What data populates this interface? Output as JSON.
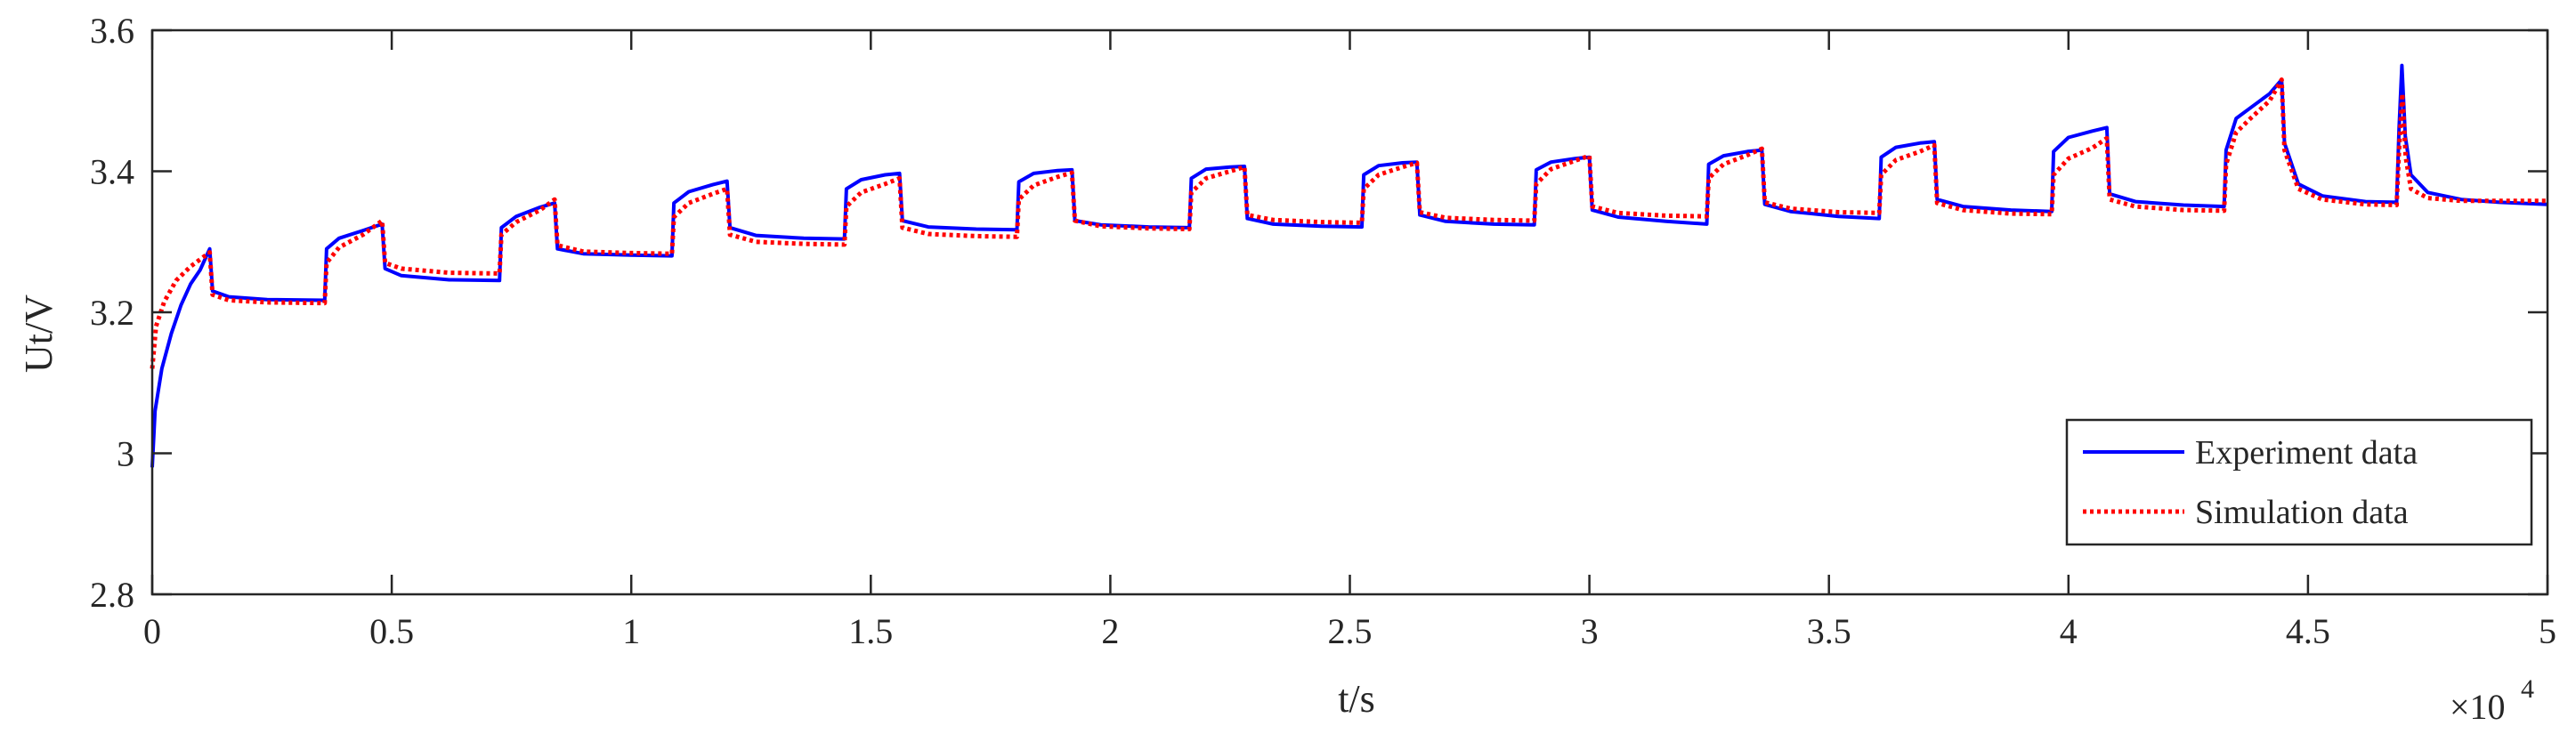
{
  "chart_data": {
    "type": "line",
    "xlabel": "t/s",
    "ylabel": "Ut/V",
    "x_multiplier_label": "×10",
    "x_multiplier_exponent": "4",
    "xlim": [
      0,
      50000
    ],
    "ylim": [
      2.8,
      3.6
    ],
    "x_ticks": [
      0,
      5000,
      10000,
      15000,
      20000,
      25000,
      30000,
      35000,
      40000,
      45000,
      50000
    ],
    "x_tick_labels": [
      "0",
      "0.5",
      "1",
      "1.5",
      "2",
      "2.5",
      "3",
      "3.5",
      "4",
      "4.5",
      "5"
    ],
    "y_ticks": [
      2.8,
      3.0,
      3.2,
      3.4,
      3.6
    ],
    "y_tick_labels": [
      "2.8",
      "3",
      "3.2",
      "3.4",
      "3.6"
    ],
    "grid": false,
    "legend_position": "lower-right",
    "series": [
      {
        "name": "Experiment data",
        "color": "#0000ff",
        "style": "solid",
        "points": [
          [
            0,
            2.98
          ],
          [
            60,
            3.06
          ],
          [
            200,
            3.12
          ],
          [
            400,
            3.17
          ],
          [
            600,
            3.21
          ],
          [
            800,
            3.24
          ],
          [
            1000,
            3.26
          ],
          [
            1200,
            3.29
          ],
          [
            1260,
            3.23
          ],
          [
            1600,
            3.222
          ],
          [
            2400,
            3.218
          ],
          [
            3600,
            3.217
          ],
          [
            3640,
            3.29
          ],
          [
            3900,
            3.305
          ],
          [
            4400,
            3.316
          ],
          [
            4800,
            3.325
          ],
          [
            4860,
            3.262
          ],
          [
            5200,
            3.252
          ],
          [
            6200,
            3.246
          ],
          [
            7250,
            3.245
          ],
          [
            7290,
            3.32
          ],
          [
            7600,
            3.336
          ],
          [
            8100,
            3.349
          ],
          [
            8400,
            3.355
          ],
          [
            8460,
            3.29
          ],
          [
            9000,
            3.283
          ],
          [
            10000,
            3.281
          ],
          [
            10850,
            3.28
          ],
          [
            10890,
            3.355
          ],
          [
            11200,
            3.371
          ],
          [
            11700,
            3.381
          ],
          [
            12000,
            3.386
          ],
          [
            12060,
            3.32
          ],
          [
            12600,
            3.309
          ],
          [
            13600,
            3.305
          ],
          [
            14450,
            3.304
          ],
          [
            14490,
            3.375
          ],
          [
            14800,
            3.388
          ],
          [
            15300,
            3.395
          ],
          [
            15600,
            3.397
          ],
          [
            15660,
            3.33
          ],
          [
            16200,
            3.321
          ],
          [
            17200,
            3.318
          ],
          [
            18050,
            3.317
          ],
          [
            18090,
            3.385
          ],
          [
            18400,
            3.397
          ],
          [
            18900,
            3.401
          ],
          [
            19200,
            3.402
          ],
          [
            19260,
            3.33
          ],
          [
            19800,
            3.324
          ],
          [
            20800,
            3.321
          ],
          [
            21650,
            3.32
          ],
          [
            21690,
            3.39
          ],
          [
            22000,
            3.403
          ],
          [
            22500,
            3.406
          ],
          [
            22800,
            3.407
          ],
          [
            22860,
            3.333
          ],
          [
            23400,
            3.325
          ],
          [
            24400,
            3.322
          ],
          [
            25250,
            3.321
          ],
          [
            25290,
            3.395
          ],
          [
            25600,
            3.408
          ],
          [
            26100,
            3.412
          ],
          [
            26400,
            3.413
          ],
          [
            26460,
            3.338
          ],
          [
            27000,
            3.329
          ],
          [
            28000,
            3.325
          ],
          [
            28850,
            3.324
          ],
          [
            28890,
            3.402
          ],
          [
            29200,
            3.413
          ],
          [
            29700,
            3.418
          ],
          [
            30000,
            3.42
          ],
          [
            30060,
            3.345
          ],
          [
            30600,
            3.335
          ],
          [
            31600,
            3.329
          ],
          [
            32450,
            3.325
          ],
          [
            32490,
            3.41
          ],
          [
            32800,
            3.422
          ],
          [
            33300,
            3.428
          ],
          [
            33600,
            3.43
          ],
          [
            33660,
            3.353
          ],
          [
            34200,
            3.343
          ],
          [
            35200,
            3.336
          ],
          [
            36050,
            3.333
          ],
          [
            36090,
            3.42
          ],
          [
            36400,
            3.434
          ],
          [
            36900,
            3.44
          ],
          [
            37200,
            3.442
          ],
          [
            37260,
            3.36
          ],
          [
            37800,
            3.35
          ],
          [
            38800,
            3.345
          ],
          [
            39650,
            3.343
          ],
          [
            39690,
            3.428
          ],
          [
            40000,
            3.448
          ],
          [
            40500,
            3.457
          ],
          [
            40800,
            3.462
          ],
          [
            40860,
            3.368
          ],
          [
            41400,
            3.357
          ],
          [
            42400,
            3.352
          ],
          [
            43250,
            3.35
          ],
          [
            43290,
            3.43
          ],
          [
            43500,
            3.475
          ],
          [
            43800,
            3.49
          ],
          [
            44200,
            3.51
          ],
          [
            44450,
            3.53
          ],
          [
            44510,
            3.44
          ],
          [
            44800,
            3.382
          ],
          [
            45300,
            3.365
          ],
          [
            46200,
            3.357
          ],
          [
            46850,
            3.356
          ],
          [
            46900,
            3.46
          ],
          [
            46960,
            3.55
          ],
          [
            47030,
            3.45
          ],
          [
            47150,
            3.395
          ],
          [
            47500,
            3.37
          ],
          [
            48200,
            3.36
          ],
          [
            49000,
            3.356
          ],
          [
            50000,
            3.353
          ]
        ]
      },
      {
        "name": "Simulation data",
        "color": "#ff0000",
        "style": "dotted",
        "points": [
          [
            0,
            3.12
          ],
          [
            80,
            3.18
          ],
          [
            250,
            3.215
          ],
          [
            500,
            3.245
          ],
          [
            800,
            3.265
          ],
          [
            1000,
            3.275
          ],
          [
            1200,
            3.285
          ],
          [
            1260,
            3.225
          ],
          [
            1600,
            3.217
          ],
          [
            2400,
            3.214
          ],
          [
            3600,
            3.213
          ],
          [
            3640,
            3.27
          ],
          [
            3900,
            3.292
          ],
          [
            4400,
            3.31
          ],
          [
            4800,
            3.33
          ],
          [
            4860,
            3.27
          ],
          [
            5200,
            3.262
          ],
          [
            6200,
            3.256
          ],
          [
            7250,
            3.255
          ],
          [
            7290,
            3.31
          ],
          [
            7600,
            3.328
          ],
          [
            8100,
            3.345
          ],
          [
            8400,
            3.36
          ],
          [
            8460,
            3.295
          ],
          [
            9000,
            3.286
          ],
          [
            10000,
            3.284
          ],
          [
            10850,
            3.283
          ],
          [
            10890,
            3.335
          ],
          [
            11200,
            3.355
          ],
          [
            11700,
            3.368
          ],
          [
            12000,
            3.375
          ],
          [
            12060,
            3.31
          ],
          [
            12600,
            3.3
          ],
          [
            13600,
            3.297
          ],
          [
            14450,
            3.296
          ],
          [
            14490,
            3.35
          ],
          [
            14800,
            3.37
          ],
          [
            15300,
            3.382
          ],
          [
            15600,
            3.39
          ],
          [
            15660,
            3.32
          ],
          [
            16200,
            3.311
          ],
          [
            17200,
            3.308
          ],
          [
            18050,
            3.307
          ],
          [
            18090,
            3.36
          ],
          [
            18400,
            3.38
          ],
          [
            18900,
            3.392
          ],
          [
            19200,
            3.398
          ],
          [
            19260,
            3.33
          ],
          [
            19800,
            3.322
          ],
          [
            20800,
            3.319
          ],
          [
            21650,
            3.318
          ],
          [
            21690,
            3.37
          ],
          [
            22000,
            3.39
          ],
          [
            22500,
            3.4
          ],
          [
            22800,
            3.406
          ],
          [
            22860,
            3.338
          ],
          [
            23400,
            3.331
          ],
          [
            24400,
            3.328
          ],
          [
            25250,
            3.327
          ],
          [
            25290,
            3.375
          ],
          [
            25600,
            3.395
          ],
          [
            26100,
            3.406
          ],
          [
            26400,
            3.412
          ],
          [
            26460,
            3.342
          ],
          [
            27000,
            3.334
          ],
          [
            28000,
            3.331
          ],
          [
            28850,
            3.33
          ],
          [
            28890,
            3.382
          ],
          [
            29200,
            3.403
          ],
          [
            29700,
            3.415
          ],
          [
            30000,
            3.422
          ],
          [
            30060,
            3.35
          ],
          [
            30600,
            3.341
          ],
          [
            31600,
            3.337
          ],
          [
            32450,
            3.336
          ],
          [
            32490,
            3.39
          ],
          [
            32800,
            3.41
          ],
          [
            33300,
            3.423
          ],
          [
            33600,
            3.432
          ],
          [
            33660,
            3.356
          ],
          [
            34200,
            3.347
          ],
          [
            35200,
            3.342
          ],
          [
            36050,
            3.341
          ],
          [
            36090,
            3.395
          ],
          [
            36400,
            3.416
          ],
          [
            36900,
            3.428
          ],
          [
            37200,
            3.437
          ],
          [
            37260,
            3.355
          ],
          [
            37800,
            3.345
          ],
          [
            38800,
            3.34
          ],
          [
            39650,
            3.339
          ],
          [
            39690,
            3.395
          ],
          [
            40000,
            3.418
          ],
          [
            40500,
            3.433
          ],
          [
            40800,
            3.447
          ],
          [
            40860,
            3.36
          ],
          [
            41400,
            3.35
          ],
          [
            42400,
            3.345
          ],
          [
            43250,
            3.344
          ],
          [
            43290,
            3.41
          ],
          [
            43500,
            3.455
          ],
          [
            43800,
            3.475
          ],
          [
            44200,
            3.5
          ],
          [
            44450,
            3.53
          ],
          [
            44510,
            3.43
          ],
          [
            44800,
            3.375
          ],
          [
            45300,
            3.36
          ],
          [
            46200,
            3.353
          ],
          [
            46850,
            3.352
          ],
          [
            46900,
            3.43
          ],
          [
            46970,
            3.51
          ],
          [
            47040,
            3.42
          ],
          [
            47150,
            3.375
          ],
          [
            47500,
            3.362
          ],
          [
            48200,
            3.358
          ],
          [
            49000,
            3.358
          ],
          [
            50000,
            3.358
          ]
        ]
      }
    ]
  }
}
